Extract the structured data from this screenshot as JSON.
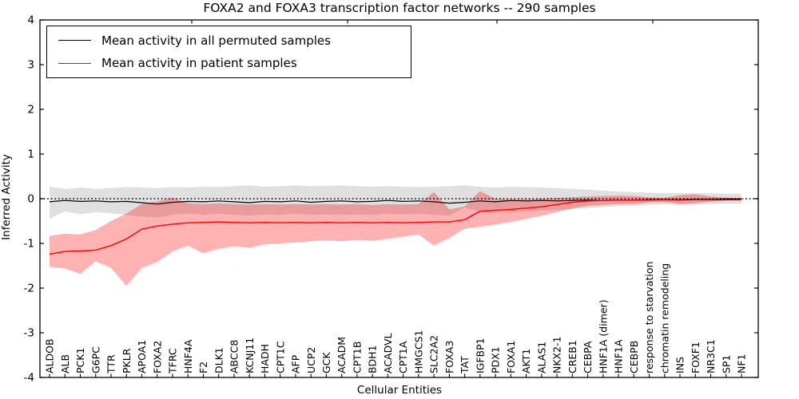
{
  "figure": {
    "title": "FOXA2 and FOXA3 transcription factor networks -- 290 samples",
    "xlabel": "Cellular Entities",
    "ylabel": "Inferred Activity"
  },
  "legend": {
    "position": "upper left",
    "entries": [
      {
        "label": "Mean activity in all permuted samples",
        "color": "#000000"
      },
      {
        "label": "Mean activity in patient samples",
        "color": "#ff0000"
      }
    ]
  },
  "chart_data": {
    "type": "line",
    "title": "FOXA2 and FOXA3 transcription factor networks -- 290 samples",
    "xlabel": "Cellular Entities",
    "ylabel": "Inferred Activity",
    "ylim": [
      -4,
      4
    ],
    "yticks": [
      4,
      3,
      2,
      1,
      0,
      -1,
      -2,
      -3,
      -4
    ],
    "grid": false,
    "legend_position": "upper left",
    "zero_reference_line": {
      "y": 0,
      "style": "dotted",
      "color": "#000000"
    },
    "categories": [
      "ALDOB",
      "ALB",
      "PCK1",
      "G6PC",
      "TTR",
      "PKLR",
      "APOA1",
      "FOXA2",
      "TFRC",
      "HNF4A",
      "F2",
      "DLK1",
      "ABCC8",
      "KCNJ11",
      "HADH",
      "CPT1C",
      "AFP",
      "UCP2",
      "GCK",
      "ACADM",
      "CPT1B",
      "BDH1",
      "ACADVL",
      "CPT1A",
      "HMGCS1",
      "SLC2A2",
      "FOXA3",
      "TAT",
      "IGFBP1",
      "PDX1",
      "FOXA1",
      "AKT1",
      "ALAS1",
      "NKX2-1",
      "CREB1",
      "CEBPA",
      "HNF1A (dimer)",
      "HNF1A",
      "CEBPB",
      "response to starvation",
      "chromatin remodeling",
      "INS",
      "FOXF1",
      "NR3C1",
      "SP1",
      "NF1"
    ],
    "series": [
      {
        "name": "Mean activity in all permuted samples",
        "color": "#000000",
        "values": [
          -0.07,
          -0.04,
          -0.06,
          -0.05,
          -0.07,
          -0.06,
          -0.09,
          -0.12,
          -0.08,
          -0.06,
          -0.07,
          -0.05,
          -0.07,
          -0.09,
          -0.06,
          -0.07,
          -0.05,
          -0.08,
          -0.06,
          -0.05,
          -0.07,
          -0.06,
          -0.04,
          -0.06,
          -0.05,
          -0.07,
          -0.1,
          -0.08,
          -0.05,
          -0.07,
          -0.04,
          -0.05,
          -0.04,
          -0.05,
          -0.04,
          -0.03,
          -0.04,
          -0.03,
          -0.03,
          -0.03,
          -0.02,
          -0.03,
          -0.02,
          -0.02,
          -0.02,
          -0.02
        ],
        "band_upper": [
          0.27,
          0.22,
          0.25,
          0.22,
          0.24,
          0.26,
          0.25,
          0.24,
          0.26,
          0.25,
          0.27,
          0.26,
          0.28,
          0.3,
          0.27,
          0.28,
          0.3,
          0.28,
          0.29,
          0.3,
          0.28,
          0.27,
          0.28,
          0.27,
          0.26,
          0.27,
          0.28,
          0.3,
          0.27,
          0.25,
          0.27,
          0.26,
          0.25,
          0.24,
          0.22,
          0.2,
          0.18,
          0.16,
          0.15,
          0.13,
          0.12,
          0.13,
          0.12,
          0.12,
          0.11,
          0.11
        ],
        "band_lower": [
          -0.45,
          -0.28,
          -0.35,
          -0.3,
          -0.33,
          -0.36,
          -0.4,
          -0.42,
          -0.36,
          -0.33,
          -0.36,
          -0.34,
          -0.36,
          -0.38,
          -0.35,
          -0.36,
          -0.34,
          -0.36,
          -0.35,
          -0.36,
          -0.35,
          -0.36,
          -0.34,
          -0.35,
          -0.34,
          -0.36,
          -0.38,
          -0.2,
          -0.3,
          -0.32,
          -0.3,
          -0.28,
          -0.26,
          -0.25,
          -0.23,
          -0.21,
          -0.19,
          -0.17,
          -0.16,
          -0.14,
          -0.13,
          -0.14,
          -0.13,
          -0.12,
          -0.11,
          -0.11
        ],
        "band_fill": "rgba(0,0,0,0.12)"
      },
      {
        "name": "Mean activity in patient samples",
        "color": "#ff0000",
        "values": [
          -1.24,
          -1.18,
          -1.17,
          -1.15,
          -1.05,
          -0.9,
          -0.68,
          -0.61,
          -0.57,
          -0.54,
          -0.53,
          -0.52,
          -0.53,
          -0.54,
          -0.53,
          -0.54,
          -0.53,
          -0.54,
          -0.53,
          -0.54,
          -0.53,
          -0.54,
          -0.53,
          -0.54,
          -0.53,
          -0.52,
          -0.52,
          -0.47,
          -0.28,
          -0.26,
          -0.24,
          -0.21,
          -0.18,
          -0.13,
          -0.08,
          -0.05,
          -0.04,
          -0.03,
          -0.03,
          -0.02,
          -0.02,
          -0.02,
          -0.01,
          -0.01,
          0.0,
          0.0
        ],
        "band_upper": [
          -0.83,
          -0.78,
          -0.8,
          -0.7,
          -0.5,
          -0.33,
          -0.12,
          -0.06,
          0.02,
          -0.1,
          -0.12,
          -0.1,
          -0.12,
          -0.13,
          -0.12,
          -0.13,
          -0.12,
          -0.13,
          -0.12,
          -0.13,
          -0.12,
          -0.14,
          -0.12,
          -0.13,
          -0.12,
          0.15,
          -0.24,
          -0.17,
          0.17,
          0.0,
          -0.02,
          -0.01,
          0.0,
          0.02,
          0.03,
          0.05,
          0.06,
          0.07,
          0.06,
          0.03,
          0.02,
          0.08,
          0.1,
          0.05,
          0.02,
          0.01
        ],
        "band_lower": [
          -1.52,
          -1.56,
          -1.68,
          -1.4,
          -1.55,
          -1.95,
          -1.55,
          -1.42,
          -1.18,
          -1.05,
          -1.22,
          -1.12,
          -1.06,
          -1.1,
          -1.02,
          -1.0,
          -0.98,
          -0.95,
          -0.93,
          -0.95,
          -0.92,
          -0.94,
          -0.9,
          -0.85,
          -0.8,
          -1.05,
          -0.88,
          -0.67,
          -0.63,
          -0.58,
          -0.52,
          -0.45,
          -0.38,
          -0.3,
          -0.22,
          -0.16,
          -0.14,
          -0.12,
          -0.12,
          -0.08,
          -0.07,
          -0.12,
          -0.1,
          -0.07,
          -0.04,
          -0.03
        ],
        "band_fill": "rgba(255,0,0,0.30)"
      }
    ]
  }
}
